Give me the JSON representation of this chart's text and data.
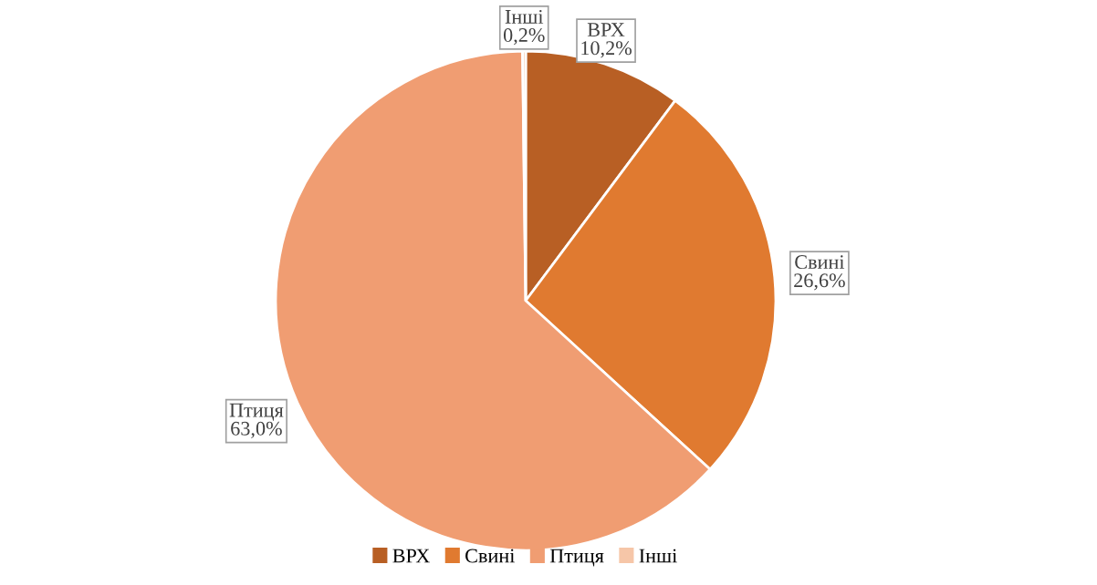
{
  "chart_data": {
    "type": "pie",
    "categories": [
      "ВРХ",
      "Свині",
      "Птиця",
      "Інші"
    ],
    "values": [
      10.2,
      26.6,
      63.0,
      0.2
    ],
    "value_labels": [
      "10,2%",
      "26,6%",
      "63,0%",
      "0,2%"
    ],
    "colors": [
      "#b85f24",
      "#e07a30",
      "#f09d72",
      "#f6c6a8"
    ],
    "legend": "bottom"
  }
}
